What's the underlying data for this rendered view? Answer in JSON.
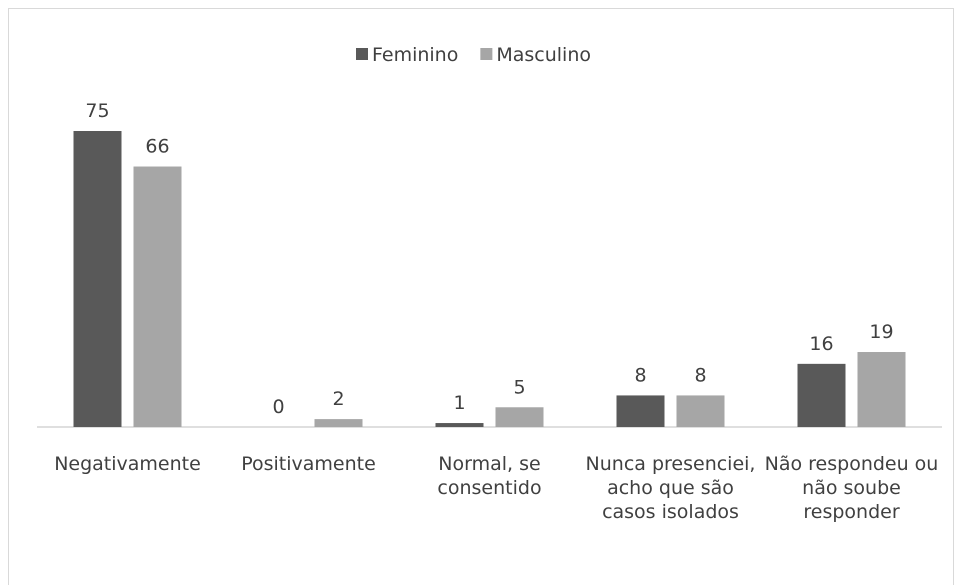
{
  "chart_data": {
    "type": "bar",
    "categories": [
      "Negativamente",
      "Positivamente",
      "Normal, se consentido",
      "Nunca presenciei, acho que são casos isolados",
      "Não respondeu ou não soube responder"
    ],
    "series": [
      {
        "name": "Feminino",
        "color": "#595959",
        "values": [
          75,
          0,
          1,
          8,
          16
        ]
      },
      {
        "name": "Masculino",
        "color": "#a6a6a6",
        "values": [
          66,
          2,
          5,
          8,
          19
        ]
      }
    ],
    "legend": "top"
  }
}
